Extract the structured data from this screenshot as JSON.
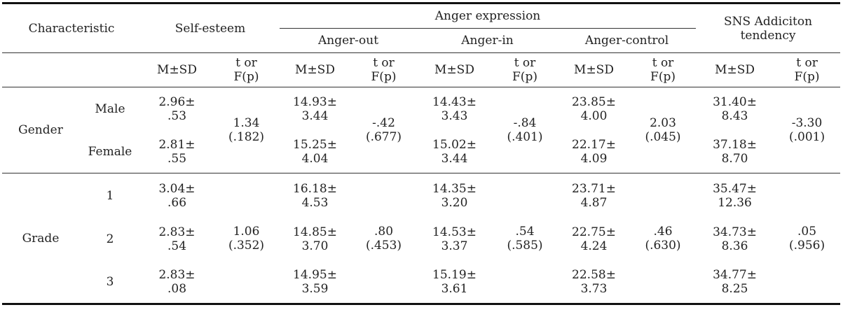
{
  "header": {
    "characteristic": "Characteristic",
    "self_esteem": "Self-esteem",
    "anger_expression": "Anger expression",
    "anger_out": "Anger-out",
    "anger_in": "Anger-in",
    "anger_control": "Anger-control",
    "sns": "SNS Addiciton\ntendency",
    "msd": "M±SD",
    "tf": "t or\nF(p)"
  },
  "gender": {
    "label": "Gender",
    "male": "Male",
    "female": "Female",
    "se_male": "2.96±\n.53",
    "se_female": "2.81±\n.55",
    "se_t": "1.34\n(.182)",
    "ao_male": "14.93±\n3.44",
    "ao_female": "15.25±\n4.04",
    "ao_t": "-.42\n(.677)",
    "ai_male": "14.43±\n3.43",
    "ai_female": "15.02±\n3.44",
    "ai_t": "-.84\n(.401)",
    "ac_male": "23.85±\n4.00",
    "ac_female": "22.17±\n4.09",
    "ac_t": "2.03\n(.045)",
    "sns_male": "31.40±\n8.43",
    "sns_female": "37.18±\n8.70",
    "sns_t": "-3.30\n(.001)"
  },
  "grade": {
    "label": "Grade",
    "g1": "1",
    "g2": "2",
    "g3": "3",
    "se_1": "3.04±\n.66",
    "se_2": "2.83±\n.54",
    "se_3": "2.83±\n.08",
    "se_f": "1.06\n(.352)",
    "ao_1": "16.18±\n4.53",
    "ao_2": "14.85±\n3.70",
    "ao_3": "14.95±\n3.59",
    "ao_f": ".80\n(.453)",
    "ai_1": "14.35±\n3.20",
    "ai_2": "14.53±\n3.37",
    "ai_3": "15.19±\n3.61",
    "ai_f": ".54\n(.585)",
    "ac_1": "23.71±\n4.87",
    "ac_2": "22.75±\n4.24",
    "ac_3": "22.58±\n3.73",
    "ac_f": ".46\n(.630)",
    "sns_1": "35.47±\n12.36",
    "sns_2": "34.73±\n8.36",
    "sns_3": "34.77±\n8.25",
    "sns_f": ".05\n(.956)"
  }
}
